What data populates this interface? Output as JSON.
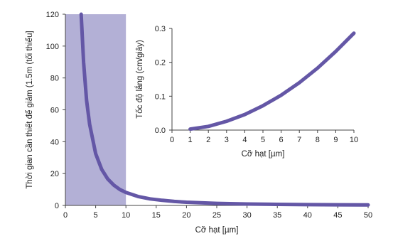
{
  "chart_data": [
    {
      "type": "line",
      "xlabel": "Cỡ hạt [µm]",
      "ylabel": "Thời gian cần thiết để giảm (1.5m (tối thiểu]",
      "xlim": [
        0,
        50
      ],
      "ylim": [
        0,
        120
      ],
      "x_ticks": [
        "0",
        "5",
        "10",
        "15",
        "20",
        "25",
        "30",
        "35",
        "40",
        "45",
        "50"
      ],
      "y_ticks": [
        "0",
        "20",
        "40",
        "60",
        "80",
        "100",
        "120"
      ],
      "shaded_region_x": [
        0,
        10
      ],
      "series": [
        {
          "x": [
            2.6,
            3,
            3.5,
            4,
            5,
            6,
            7,
            8,
            9,
            10,
            12,
            14,
            16,
            18,
            20,
            25,
            30,
            35,
            40,
            45,
            50
          ],
          "values": [
            120,
            90,
            66,
            51,
            32.5,
            22.6,
            16.6,
            12.7,
            10.0,
            8.1,
            5.6,
            4.1,
            3.2,
            2.5,
            2.0,
            1.3,
            0.9,
            0.66,
            0.51,
            0.4,
            0.33
          ]
        }
      ],
      "grid": false,
      "line_color": "#6457a6",
      "shade_color": "#b3b0d6"
    },
    {
      "type": "line",
      "xlabel": "Cỡ hạt [µm]",
      "ylabel": "Tốc độ lắng (cm/giây)",
      "xlim": [
        0,
        10
      ],
      "ylim": [
        0,
        0.3
      ],
      "x_ticks": [
        "0",
        "1",
        "2",
        "3",
        "4",
        "5",
        "6",
        "7",
        "8",
        "9",
        "10"
      ],
      "y_ticks": [
        "0.0",
        "0.1",
        "0.2",
        "0.3"
      ],
      "series": [
        {
          "x": [
            1,
            2,
            3,
            4,
            5,
            6,
            7,
            8,
            9,
            10
          ],
          "values": [
            0.003,
            0.011,
            0.026,
            0.046,
            0.072,
            0.103,
            0.14,
            0.183,
            0.232,
            0.286
          ]
        }
      ],
      "grid": false,
      "line_color": "#6457a6"
    }
  ]
}
